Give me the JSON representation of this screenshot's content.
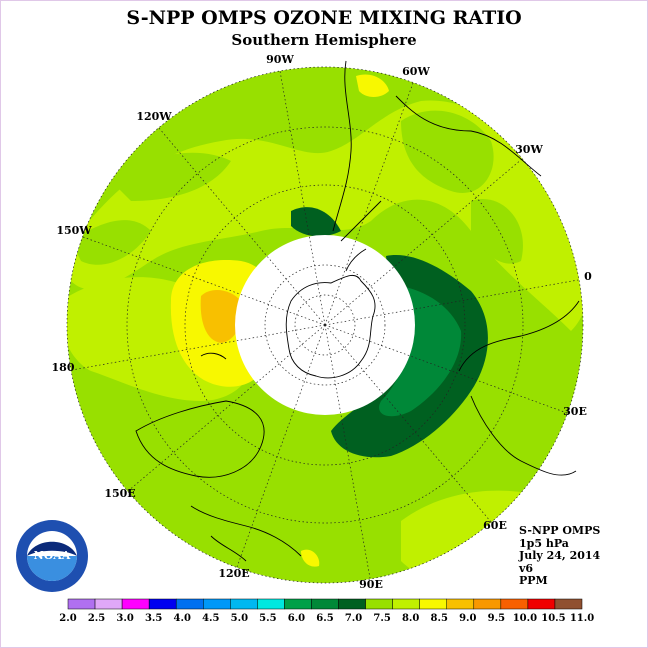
{
  "title": "S-NPP OMPS OZONE MIXING RATIO",
  "subtitle": "Southern Hemisphere",
  "longitude_labels": [
    "90W",
    "60W",
    "30W",
    "0",
    "30E",
    "60E",
    "90E",
    "120E",
    "150E",
    "180",
    "150W",
    "120W"
  ],
  "info": {
    "instrument": "S-NPP OMPS",
    "level": "1p5 hPa",
    "date": "July 24, 2014",
    "version": "v6",
    "units": "PPM"
  },
  "logo": {
    "text": "NOAA"
  },
  "colorbar": {
    "ticks": [
      "2.0",
      "2.5",
      "3.0",
      "3.5",
      "4.0",
      "4.5",
      "5.0",
      "5.5",
      "6.0",
      "6.5",
      "7.0",
      "7.5",
      "8.0",
      "8.5",
      "9.0",
      "9.5",
      "10.0",
      "10.5",
      "11.0"
    ],
    "colors": [
      "#b070f0",
      "#e0a8f8",
      "#ff00ff",
      "#0000f0",
      "#0070f0",
      "#0098f8",
      "#00b8f0",
      "#00e8e0",
      "#00a048",
      "#008838",
      "#006020",
      "#98e000",
      "#c0f000",
      "#f8f800",
      "#f8c000",
      "#f89800",
      "#f86000",
      "#f00000",
      "#905030"
    ]
  },
  "colors": {
    "background": "#ffffff",
    "no_data": "#ffffff",
    "frame": "#e0c8e8"
  }
}
